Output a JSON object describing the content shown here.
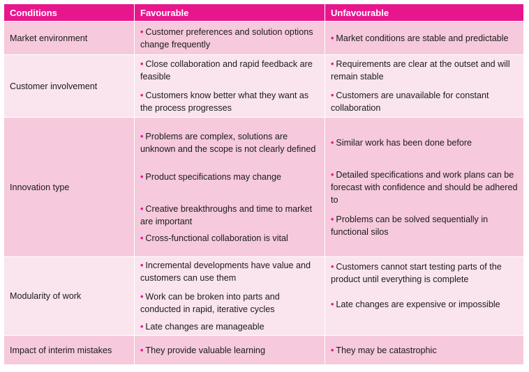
{
  "headers": [
    "Conditions",
    "Favourable",
    "Unfavourable"
  ],
  "rows": [
    {
      "condition": "Market environment",
      "favourable": [
        "Customer preferences and solution options change frequently"
      ],
      "unfavourable": [
        "Market conditions are stable and predictable"
      ]
    },
    {
      "condition": "Customer involvement",
      "favourable": [
        "Close collaboration and rapid feedback are feasible",
        "Customers know better what they want as the process progresses"
      ],
      "unfavourable": [
        "Requirements are clear at the outset and will remain stable",
        "Customers are unavailable for constant collaboration"
      ]
    },
    {
      "condition": "Innovation type",
      "favourable": [
        "Problems are complex, solutions are unknown and the scope is not clearly defined",
        "Product specifications may change",
        "Creative breakthroughs and time to market are important",
        "Cross-functional collaboration is vital"
      ],
      "unfavourable": [
        "Similar work has been done before",
        "Detailed specifications and work plans can be forecast with confidence and should be adhered to",
        "Problems can be solved sequentially in functional silos"
      ]
    },
    {
      "condition": "Modularity of work",
      "favourable": [
        "Incremental developments have value and customers can use them",
        "Work can be broken into parts and conducted in rapid, iterative cycles",
        "Late changes are manageable"
      ],
      "unfavourable": [
        "Customers cannot start testing parts of the product until everything is complete",
        "Late changes are expensive or impossible"
      ]
    },
    {
      "condition": "Impact of interim mistakes",
      "favourable": [
        "They provide valuable learning"
      ],
      "unfavourable": [
        "They may be catastrophic"
      ]
    }
  ],
  "colors": {
    "header": "#e8168c",
    "row_dark": "#f6c9dc",
    "row_light": "#fae4ee",
    "bullet": "#e8168c"
  },
  "bullet_icon": "bullet-dot"
}
